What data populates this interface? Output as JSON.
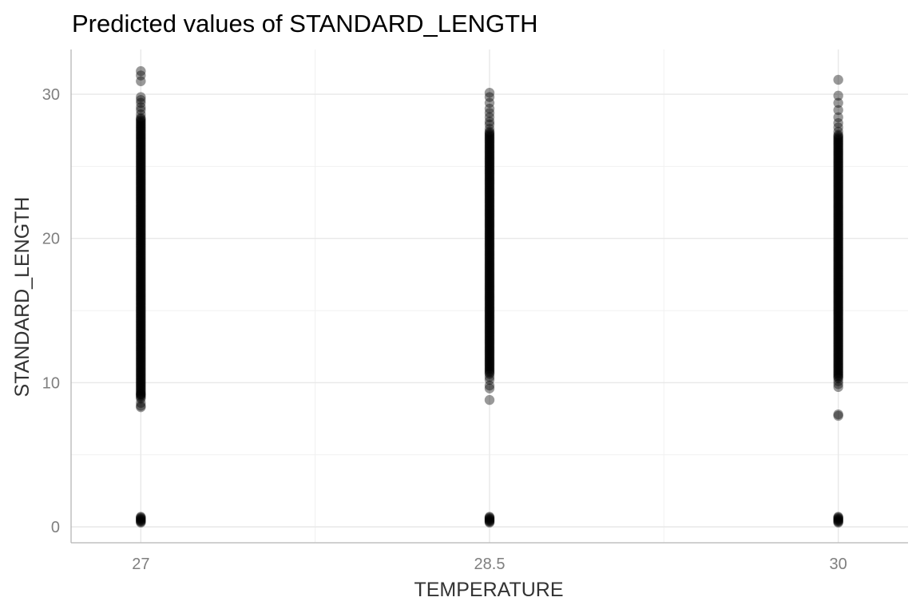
{
  "chart_data": {
    "type": "scatter",
    "title": "Predicted values of STANDARD_LENGTH",
    "xlabel": "TEMPERATURE",
    "ylabel": "STANDARD_LENGTH",
    "x_ticks": [
      27,
      28.5,
      30
    ],
    "x_tick_labels": [
      "27",
      "28.5",
      "30"
    ],
    "y_ticks": [
      0,
      10,
      20,
      30
    ],
    "y_tick_labels": [
      "0",
      "10",
      "20",
      "30"
    ],
    "xlim": [
      26.7,
      30.3
    ],
    "ylim": [
      -1.1,
      33.1
    ],
    "grid": true,
    "point_color": "#000000",
    "point_opacity": 0.4,
    "groups": [
      {
        "x": 27,
        "dense_range": [
          9.0,
          28.4
        ],
        "low_cluster": [
          0.3,
          0.7
        ],
        "sparse_points": [
          8.3,
          8.4,
          8.6,
          8.9,
          9.2,
          28.6,
          28.9,
          29.1,
          29.4,
          29.6,
          29.8,
          30.9,
          31.3,
          31.6
        ]
      },
      {
        "x": 28.5,
        "dense_range": [
          10.6,
          27.4
        ],
        "low_cluster": [
          0.3,
          0.7
        ],
        "sparse_points": [
          8.8,
          9.6,
          9.8,
          10.2,
          10.4,
          27.6,
          27.9,
          28.1,
          28.4,
          28.7,
          29.0,
          29.4,
          29.8,
          30.1
        ]
      },
      {
        "x": 30,
        "dense_range": [
          10.3,
          27.2
        ],
        "low_cluster": [
          0.3,
          0.7
        ],
        "sparse_points": [
          7.7,
          7.8,
          9.7,
          9.9,
          10.1,
          27.4,
          27.7,
          28.0,
          28.4,
          28.9,
          29.4,
          29.9,
          31.0
        ]
      }
    ]
  }
}
